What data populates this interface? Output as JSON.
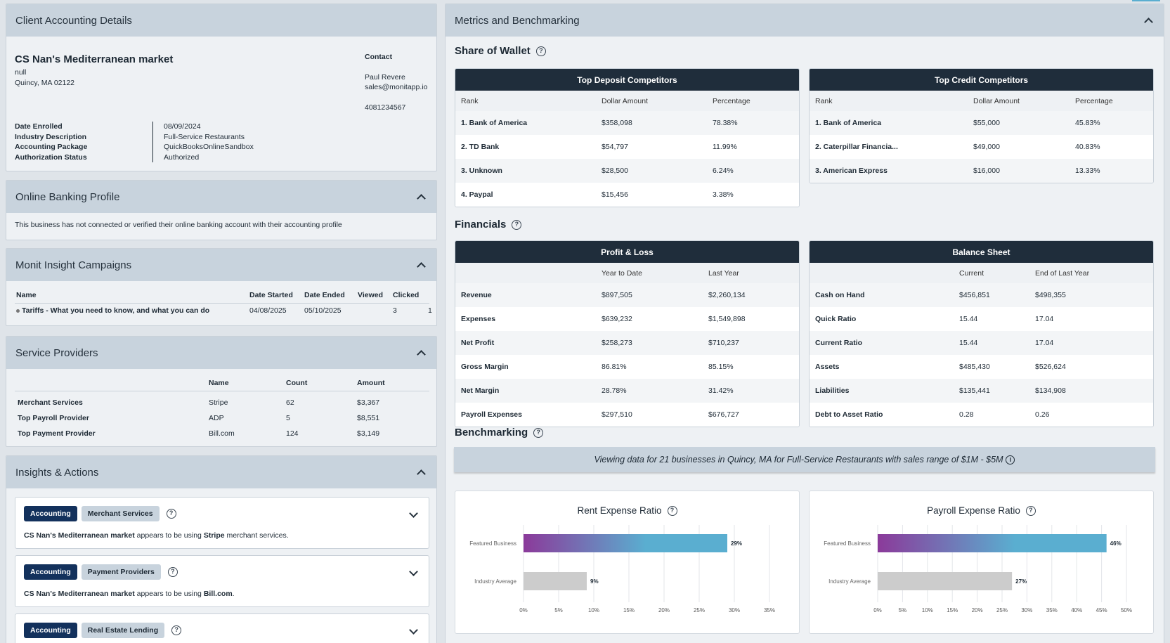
{
  "client": {
    "title": "Client Accounting Details",
    "name": "CS Nan's Mediterranean market",
    "address1": "null",
    "address2": "Quincy, MA 02122",
    "contact_label": "Contact",
    "contact_name": "Paul Revere",
    "contact_email": "sales@monitapp.io",
    "contact_phone": "4081234567",
    "fields": [
      {
        "label": "Date Enrolled",
        "value": "08/09/2024"
      },
      {
        "label": "Industry Description",
        "value": "Full-Service Restaurants"
      },
      {
        "label": "Accounting Package",
        "value": "QuickBooksOnlineSandbox"
      },
      {
        "label": "Authorization Status",
        "value": "Authorized"
      }
    ]
  },
  "banking": {
    "title": "Online Banking Profile",
    "message": "This business has not connected or verified their online banking account with their accounting profile"
  },
  "campaigns": {
    "title": "Monit Insight Campaigns",
    "headers": [
      "Name",
      "Date Started",
      "Date Ended",
      "Viewed",
      "Clicked"
    ],
    "rows": [
      {
        "name": "Tariffs - What you need to know, and what you can do",
        "started": "04/08/2025",
        "ended": "05/10/2025",
        "viewed": "3",
        "clicked": "1"
      }
    ]
  },
  "providers": {
    "title": "Service Providers",
    "headers": [
      "Name",
      "Count",
      "Amount"
    ],
    "rows": [
      {
        "label": "Merchant Services",
        "name": "Stripe",
        "count": "62",
        "amount": "$3,367"
      },
      {
        "label": "Top Payroll Provider",
        "name": "ADP",
        "count": "5",
        "amount": "$8,551"
      },
      {
        "label": "Top Payment Provider",
        "name": "Bill.com",
        "count": "124",
        "amount": "$3,149"
      }
    ]
  },
  "insights": {
    "title": "Insights & Actions",
    "cards": [
      {
        "tag1": "Accounting",
        "tag2": "Merchant Services",
        "pre": "CS Nan's Mediterranean market",
        "mid": " appears to be using ",
        "strong": "Stripe",
        "post": " merchant services."
      },
      {
        "tag1": "Accounting",
        "tag2": "Payment Providers",
        "pre": "CS Nan's Mediterranean market",
        "mid": " appears to be using ",
        "strong": "Bill.com",
        "post": "."
      },
      {
        "tag1": "Accounting",
        "tag2": "Real Estate Lending",
        "pre": "",
        "mid": "",
        "strong": "",
        "post": ""
      }
    ]
  },
  "metrics": {
    "title": "Metrics and Benchmarking",
    "share_title": "Share of Wallet",
    "deposit": {
      "title": "Top Deposit Competitors",
      "headers": [
        "Rank",
        "Dollar Amount",
        "Percentage"
      ],
      "rows": [
        [
          "1. Bank of America",
          "$358,098",
          "78.38%"
        ],
        [
          "2. TD Bank",
          "$54,797",
          "11.99%"
        ],
        [
          "3. Unknown",
          "$28,500",
          "6.24%"
        ],
        [
          "4. Paypal",
          "$15,456",
          "3.38%"
        ]
      ]
    },
    "credit": {
      "title": "Top Credit Competitors",
      "headers": [
        "Rank",
        "Dollar Amount",
        "Percentage"
      ],
      "rows": [
        [
          "1. Bank of America",
          "$55,000",
          "45.83%"
        ],
        [
          "2. Caterpillar Financia...",
          "$49,000",
          "40.83%"
        ],
        [
          "3. American Express",
          "$16,000",
          "13.33%"
        ]
      ]
    },
    "fin_title": "Financials",
    "pl": {
      "title": "Profit & Loss",
      "headers": [
        "",
        "Year to Date",
        "Last Year"
      ],
      "rows": [
        [
          "Revenue",
          "$897,505",
          "$2,260,134"
        ],
        [
          "Expenses",
          "$639,232",
          "$1,549,898"
        ],
        [
          "Net Profit",
          "$258,273",
          "$710,237"
        ],
        [
          "Gross Margin",
          "86.81%",
          "85.15%"
        ],
        [
          "Net Margin",
          "28.78%",
          "31.42%"
        ],
        [
          "Payroll Expenses",
          "$297,510",
          "$676,727"
        ]
      ]
    },
    "bs": {
      "title": "Balance Sheet",
      "headers": [
        "",
        "Current",
        "End of Last Year"
      ],
      "rows": [
        [
          "Cash on Hand",
          "$456,851",
          "$498,355"
        ],
        [
          "Quick Ratio",
          "15.44",
          "17.04"
        ],
        [
          "Current Ratio",
          "15.44",
          "17.04"
        ],
        [
          "Assets",
          "$485,430",
          "$526,624"
        ],
        [
          "Liabilities",
          "$135,441",
          "$134,908"
        ],
        [
          "Debt to Asset Ratio",
          "0.28",
          "0.26"
        ]
      ]
    },
    "bench_title": "Benchmarking",
    "bench_banner": "Viewing data for 21 businesses in Quincy, MA for Full-Service Restaurants with sales range of $1M - $5M"
  },
  "chart_data": [
    {
      "type": "bar",
      "title": "Rent Expense Ratio",
      "categories": [
        "Featured Business",
        "Industry Average"
      ],
      "values": [
        29,
        9
      ],
      "labels": [
        "29%",
        "9%"
      ],
      "xlim": [
        0,
        35
      ],
      "ticks": [
        0,
        5,
        10,
        15,
        20,
        25,
        30,
        35
      ],
      "colors": {
        "featured_start": "#8b3a9a",
        "featured_end": "#5aaed0",
        "average": "#cccccc"
      },
      "grid": true
    },
    {
      "type": "bar",
      "title": "Payroll Expense Ratio",
      "categories": [
        "Featured Business",
        "Industry Average"
      ],
      "values": [
        46,
        27
      ],
      "labels": [
        "46%",
        "27%"
      ],
      "xlim": [
        0,
        50
      ],
      "ticks": [
        0,
        5,
        10,
        15,
        20,
        25,
        30,
        35,
        40,
        45,
        50
      ],
      "colors": {
        "featured_start": "#8b3a9a",
        "featured_end": "#5aaed0",
        "average": "#cccccc"
      },
      "grid": true
    }
  ]
}
